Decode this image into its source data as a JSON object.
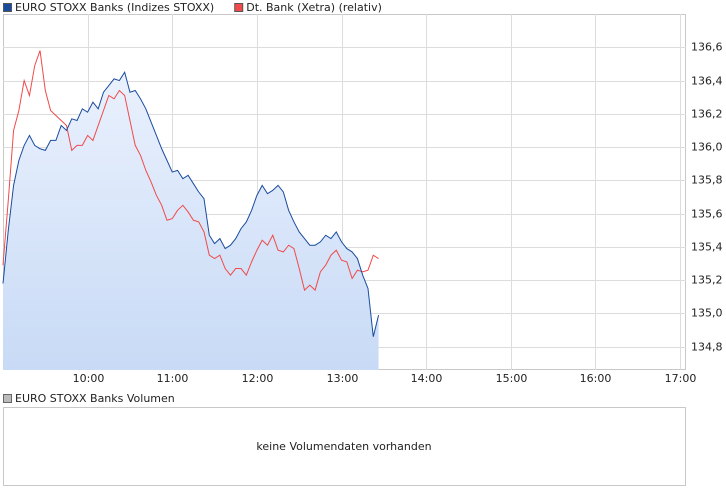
{
  "chart_data": {
    "type": "line",
    "x": [
      9,
      9.0625,
      9.125,
      9.1875,
      9.25,
      9.3125,
      9.375,
      9.4375,
      9.5,
      9.5625,
      9.625,
      9.6875,
      9.75,
      9.8125,
      9.875,
      9.9375,
      10,
      10.0625,
      10.125,
      10.1875,
      10.25,
      10.3125,
      10.375,
      10.4375,
      10.5,
      10.5625,
      10.625,
      10.6875,
      10.75,
      10.8125,
      10.875,
      10.9375,
      11,
      11.0625,
      11.125,
      11.1875,
      11.25,
      11.3125,
      11.375,
      11.4375,
      11.5,
      11.5625,
      11.625,
      11.6875,
      11.75,
      11.8125,
      11.875,
      11.9375,
      12,
      12.0625,
      12.125,
      12.1875,
      12.25,
      12.3125,
      12.375,
      12.4375,
      12.5,
      12.5625,
      12.625,
      12.6875,
      12.75,
      12.8125,
      12.875,
      12.9375,
      13,
      13.0625,
      13.125,
      13.1875,
      13.25,
      13.3125,
      13.375,
      13.4375
    ],
    "series": [
      {
        "name": "EURO STOXX Banks (Indizes STOXX)",
        "color": "#1a4c9e",
        "area": true,
        "values": [
          135.18,
          135.5,
          135.77,
          135.92,
          136.01,
          136.07,
          136.01,
          135.99,
          135.98,
          136.04,
          136.04,
          136.13,
          136.1,
          136.17,
          136.16,
          136.23,
          136.21,
          136.27,
          136.23,
          136.33,
          136.37,
          136.41,
          136.4,
          136.45,
          136.33,
          136.34,
          136.29,
          136.23,
          136.15,
          136.07,
          135.99,
          135.92,
          135.85,
          135.86,
          135.81,
          135.83,
          135.78,
          135.73,
          135.69,
          135.47,
          135.42,
          135.45,
          135.39,
          135.41,
          135.45,
          135.51,
          135.55,
          135.62,
          135.71,
          135.77,
          135.72,
          135.74,
          135.77,
          135.73,
          135.62,
          135.55,
          135.49,
          135.45,
          135.41,
          135.41,
          135.43,
          135.47,
          135.45,
          135.49,
          135.43,
          135.39,
          135.37,
          135.33,
          135.23,
          135.15,
          134.86,
          134.99
        ]
      },
      {
        "name": "Dt. Bank (Xetra) (relativ)",
        "color": "#f04a4a",
        "area": false,
        "values": [
          135.29,
          135.68,
          136.1,
          136.22,
          136.4,
          136.31,
          136.49,
          136.58,
          136.34,
          136.22,
          136.19,
          136.16,
          136.13,
          135.98,
          136.01,
          136.01,
          136.07,
          136.04,
          136.13,
          136.22,
          136.31,
          136.29,
          136.34,
          136.31,
          136.16,
          136.01,
          135.95,
          135.86,
          135.79,
          135.71,
          135.65,
          135.56,
          135.57,
          135.62,
          135.65,
          135.61,
          135.56,
          135.55,
          135.49,
          135.35,
          135.33,
          135.35,
          135.27,
          135.23,
          135.27,
          135.27,
          135.23,
          135.31,
          135.38,
          135.44,
          135.41,
          135.47,
          135.38,
          135.37,
          135.41,
          135.39,
          135.27,
          135.14,
          135.17,
          135.14,
          135.25,
          135.29,
          135.35,
          135.38,
          135.32,
          135.31,
          135.21,
          135.26,
          135.25,
          135.26,
          135.35,
          135.33
        ]
      }
    ],
    "xlim": [
      9,
      17.07
    ],
    "xticks": [
      {
        "value": 10,
        "label": "10:00"
      },
      {
        "value": 11,
        "label": "11:00"
      },
      {
        "value": 12,
        "label": "12:00"
      },
      {
        "value": 13,
        "label": "13:00"
      },
      {
        "value": 14,
        "label": "14:00"
      },
      {
        "value": 15,
        "label": "15:00"
      },
      {
        "value": 16,
        "label": "16:00"
      },
      {
        "value": 17,
        "label": "17:00"
      }
    ],
    "ylim": [
      134.66,
      136.8
    ],
    "yticks": [
      {
        "value": 134.8,
        "label": "134,8"
      },
      {
        "value": 135,
        "label": "135,0"
      },
      {
        "value": 135.2,
        "label": "135,2"
      },
      {
        "value": 135.4,
        "label": "135,4"
      },
      {
        "value": 135.6,
        "label": "135,6"
      },
      {
        "value": 135.8,
        "label": "135,8"
      },
      {
        "value": 136,
        "label": "136,0"
      },
      {
        "value": 136.2,
        "label": "136,2"
      },
      {
        "value": 136.4,
        "label": "136,4"
      },
      {
        "value": 136.6,
        "label": "136,6"
      }
    ],
    "grid": true
  },
  "volume_panel": {
    "legend": "EURO STOXX Banks Volumen",
    "legend_color": "#bbbbbb",
    "message": "keine Volumendaten vorhanden"
  }
}
